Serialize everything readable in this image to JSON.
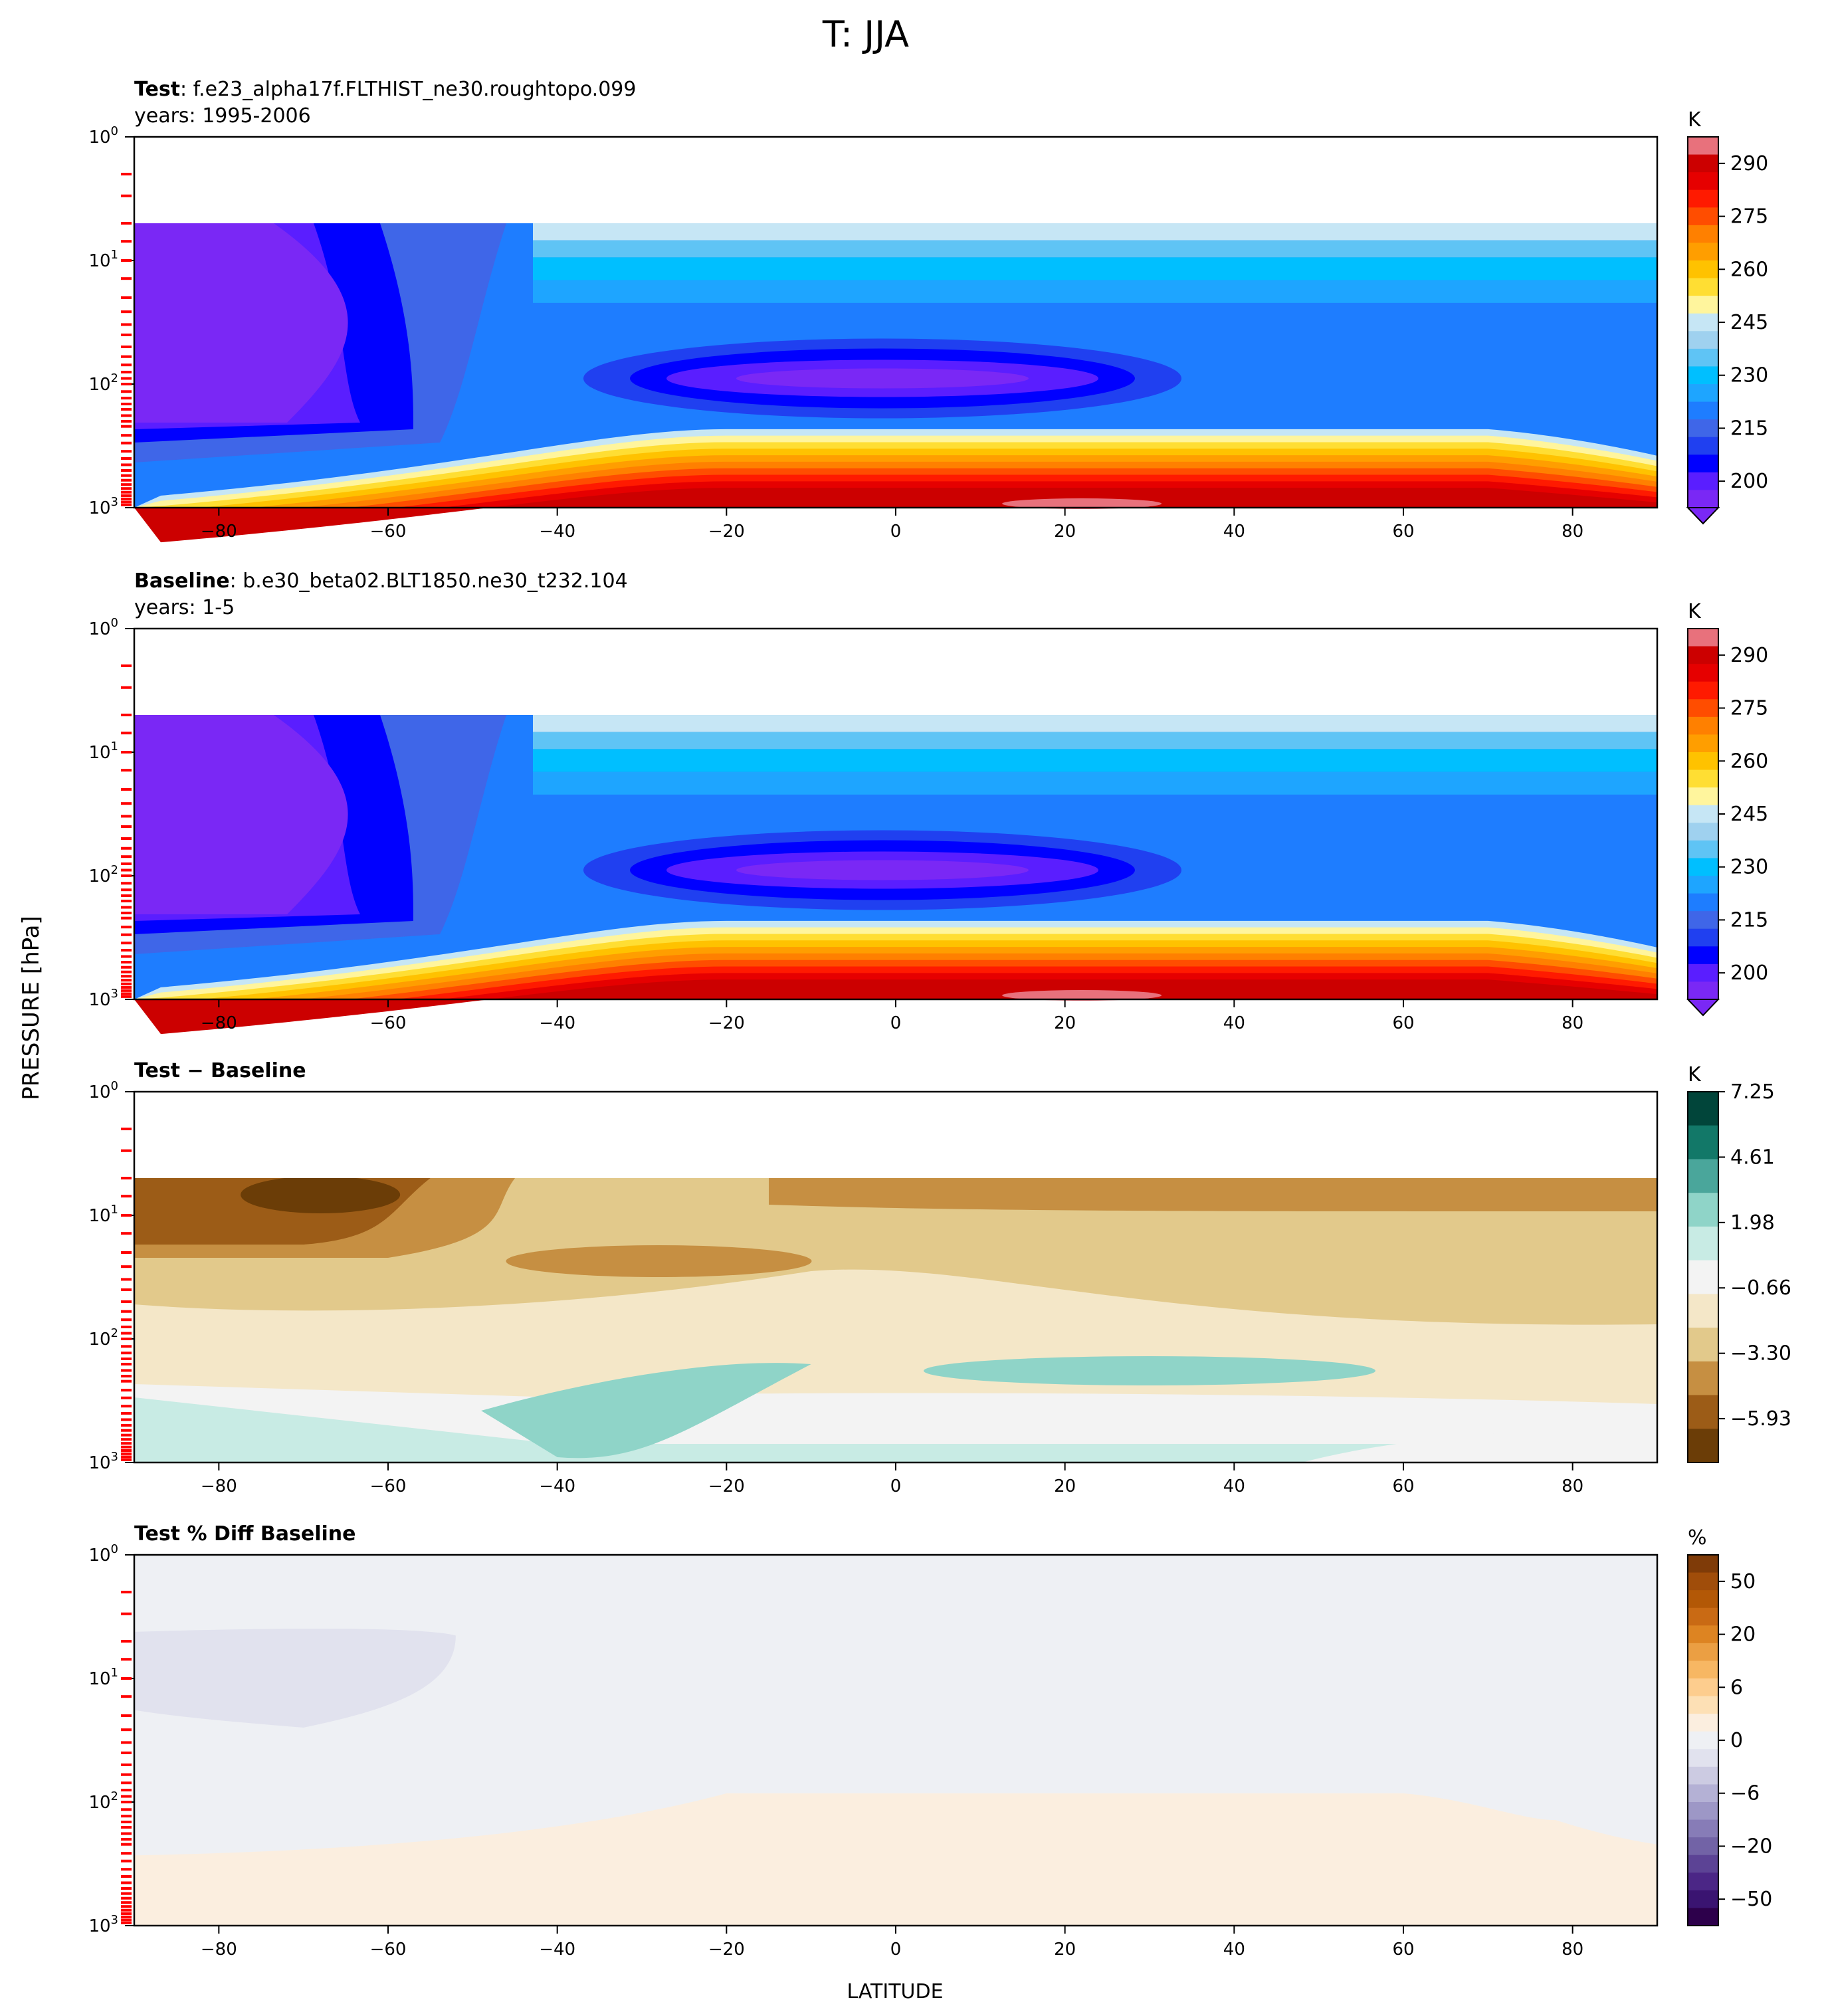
{
  "figure": {
    "suptitle": "T: JJA",
    "ylabel": "PRESSURE [hPa]",
    "xlabel": "LATITUDE"
  },
  "chart_data": [
    {
      "type": "heatmap",
      "panel": "Test",
      "title_bold": "Test",
      "title_rest": ": f.e23_alpha17f.FLTHIST_ne30.roughtopo.099",
      "subtitle": "years: 1995-2006",
      "x_ticks": [
        -80,
        -60,
        -40,
        -20,
        0,
        20,
        40,
        60,
        80
      ],
      "xlim": [
        -90,
        90
      ],
      "y_scale": "log",
      "y_inverted": true,
      "ylim": [
        1000,
        1
      ],
      "y_ticks": [
        "10^0",
        "10^1",
        "10^2",
        "10^3"
      ],
      "colorbar": {
        "unit": "K",
        "colormap": "blue-violet to red (temperature)",
        "tick_labels": [
          "290",
          "275",
          "260",
          "245",
          "230",
          "215",
          "200"
        ],
        "colors": [
          "#e8717c",
          "#cc0000",
          "#e60000",
          "#ff1a00",
          "#ff4d00",
          "#ff8000",
          "#ff9e00",
          "#ffc200",
          "#ffde33",
          "#fff59d",
          "#c6e6f5",
          "#9fd1ef",
          "#5fc4f5",
          "#00bfff",
          "#1ea5ff",
          "#1e7dff",
          "#3f66e8",
          "#2040f0",
          "#0000ff",
          "#5a1eff",
          "#7a28f5"
        ]
      }
    },
    {
      "type": "heatmap",
      "panel": "Baseline",
      "title_bold": "Baseline",
      "title_rest": ": b.e30_beta02.BLT1850.ne30_t232.104",
      "subtitle": "years: 1-5",
      "x_ticks": [
        -80,
        -60,
        -40,
        -20,
        0,
        20,
        40,
        60,
        80
      ],
      "xlim": [
        -90,
        90
      ],
      "y_scale": "log",
      "y_inverted": true,
      "ylim": [
        1000,
        1
      ],
      "y_ticks": [
        "10^0",
        "10^1",
        "10^2",
        "10^3"
      ],
      "colorbar": {
        "unit": "K",
        "colormap": "blue-violet to red (temperature)",
        "tick_labels": [
          "290",
          "275",
          "260",
          "245",
          "230",
          "215",
          "200"
        ],
        "colors": [
          "#e8717c",
          "#cc0000",
          "#e60000",
          "#ff1a00",
          "#ff4d00",
          "#ff8000",
          "#ff9e00",
          "#ffc200",
          "#ffde33",
          "#fff59d",
          "#c6e6f5",
          "#9fd1ef",
          "#5fc4f5",
          "#00bfff",
          "#1ea5ff",
          "#1e7dff",
          "#3f66e8",
          "#2040f0",
          "#0000ff",
          "#5a1eff",
          "#7a28f5"
        ]
      }
    },
    {
      "type": "heatmap",
      "panel": "Difference",
      "title_bold": "Test − Baseline",
      "title_rest": "",
      "subtitle": "",
      "x_ticks": [
        -80,
        -60,
        -40,
        -20,
        0,
        20,
        40,
        60,
        80
      ],
      "xlim": [
        -90,
        90
      ],
      "y_scale": "log",
      "y_inverted": true,
      "ylim": [
        1000,
        1
      ],
      "y_ticks": [
        "10^0",
        "10^1",
        "10^2",
        "10^3"
      ],
      "colorbar": {
        "unit": "K",
        "colormap": "BrBG",
        "tick_labels": [
          "7.25",
          "4.61",
          "1.98",
          "−0.66",
          "−3.30",
          "−5.93"
        ],
        "colors": [
          "#01453a",
          "#127868",
          "#4aa69b",
          "#8fd4c8",
          "#c8ebe4",
          "#f3f3f3",
          "#f4e7c8",
          "#e2c98b",
          "#c68f42",
          "#9c5c17",
          "#6b3d07"
        ]
      }
    },
    {
      "type": "heatmap",
      "panel": "Percent Difference",
      "title_bold": "Test % Diff Baseline",
      "title_rest": "",
      "subtitle": "",
      "x_ticks": [
        -80,
        -60,
        -40,
        -20,
        0,
        20,
        40,
        60,
        80
      ],
      "xlim": [
        -90,
        90
      ],
      "y_scale": "log",
      "y_inverted": true,
      "ylim": [
        1000,
        1
      ],
      "y_ticks": [
        "10^0",
        "10^1",
        "10^2",
        "10^3"
      ],
      "colorbar": {
        "unit": "%",
        "colormap": "PuOr",
        "tick_labels": [
          "50",
          "20",
          "6",
          "0",
          "−6",
          "−20",
          "−50"
        ],
        "colors": [
          "#7f3b08",
          "#a04d0a",
          "#b35806",
          "#c96a14",
          "#dd8422",
          "#eb9f43",
          "#f7b763",
          "#fdcd8e",
          "#fde0b5",
          "#fbeedf",
          "#eef0f4",
          "#e1e2ee",
          "#cccbe2",
          "#b4b1d5",
          "#9d97c6",
          "#877cb7",
          "#7263a6",
          "#5c4395",
          "#4b2686",
          "#3a1471",
          "#2d004b"
        ]
      }
    }
  ]
}
